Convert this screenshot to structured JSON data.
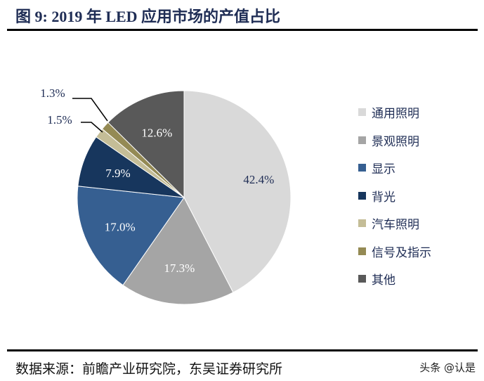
{
  "title": "图 9: 2019 年 LED 应用市场的产值占比",
  "source": "数据来源：前瞻产业研究院，东吴证券研究所",
  "watermark": "头条 @认是",
  "chart_data": {
    "type": "pie",
    "start": "12 o'clock, clockwise",
    "legend_position": "right",
    "categories": [
      "通用照明",
      "景观照明",
      "显示",
      "背光",
      "汽车照明",
      "信号及指示",
      "其他"
    ],
    "values": [
      42.4,
      17.3,
      17.0,
      7.9,
      1.5,
      1.3,
      12.6
    ],
    "labels": [
      "42.4%",
      "17.3%",
      "17.0%",
      "7.9%",
      "1.5%",
      "1.3%",
      "12.6%"
    ],
    "colors": [
      "#d9d9d9",
      "#a5a5a5",
      "#365f91",
      "#17365d",
      "#c4bd97",
      "#948a54",
      "#595959"
    ],
    "label_colors": [
      "#1f2d55",
      "#ffffff",
      "#ffffff",
      "#ffffff",
      "#1f2d55",
      "#1f2d55",
      "#ffffff"
    ]
  }
}
